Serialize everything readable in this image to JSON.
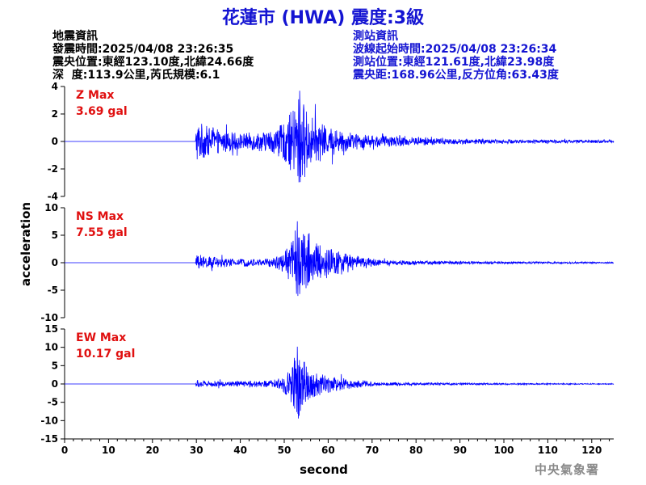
{
  "title": "花蓮市 (HWA) 震度:3級",
  "colors": {
    "title": "#1414d2",
    "event_info": "#000000",
    "station_info": "#1414d2",
    "max_label": "#e01010",
    "trace": "#0000ff",
    "axis": "#000000",
    "agency": "#8a8a8a"
  },
  "event_info": {
    "heading": "地震資訊",
    "origin_time": "發震時間:2025/04/08 23:26:35",
    "epicenter": "震央位置:東經123.10度,北緯24.66度",
    "depth_magnitude": "深  度:113.9公里,芮氏規模:6.1"
  },
  "station_info": {
    "heading": "測站資訊",
    "wave_onset": "波線起始時間:2025/04/08 23:26:34",
    "station_location": "測站位置:東經121.61度,北緯23.98度",
    "distance_azimuth": "震央距:168.96公里,反方位角:63.43度"
  },
  "agency": "中央氣象署",
  "chart_data": {
    "type": "line",
    "xlabel": "second",
    "ylabel": "acceleration",
    "xlim": [
      0,
      125
    ],
    "xticks": [
      0,
      10,
      20,
      30,
      40,
      50,
      60,
      70,
      80,
      90,
      100,
      110,
      120
    ],
    "panels": [
      {
        "component": "Z",
        "max_label": "Z Max",
        "max_value": "3.69 gal",
        "ylim": [
          -4,
          4
        ],
        "yticks": [
          -4,
          -2,
          0,
          2,
          4
        ],
        "onset_s": 30,
        "envelope": [
          [
            0,
            0
          ],
          [
            29.8,
            0
          ],
          [
            30,
            1.6
          ],
          [
            31,
            1.4
          ],
          [
            33,
            1.0
          ],
          [
            36,
            0.8
          ],
          [
            40,
            0.6
          ],
          [
            44,
            0.7
          ],
          [
            48,
            0.9
          ],
          [
            50,
            1.4
          ],
          [
            52,
            2.4
          ],
          [
            53.5,
            3.69
          ],
          [
            55,
            2.4
          ],
          [
            57,
            1.6
          ],
          [
            59,
            1.2
          ],
          [
            62,
            0.9
          ],
          [
            66,
            0.6
          ],
          [
            70,
            0.45
          ],
          [
            80,
            0.3
          ],
          [
            90,
            0.2
          ],
          [
            100,
            0.15
          ],
          [
            115,
            0.12
          ],
          [
            125,
            0.1
          ]
        ]
      },
      {
        "component": "NS",
        "max_label": "NS Max",
        "max_value": "7.55 gal",
        "ylim": [
          -10,
          10
        ],
        "yticks": [
          -10,
          -5,
          0,
          5,
          10
        ],
        "onset_s": 30,
        "envelope": [
          [
            0,
            0
          ],
          [
            29.8,
            0
          ],
          [
            30,
            1.4
          ],
          [
            32,
            1.2
          ],
          [
            35,
            0.9
          ],
          [
            40,
            0.7
          ],
          [
            45,
            0.7
          ],
          [
            48,
            1.0
          ],
          [
            50,
            2.0
          ],
          [
            52,
            5.0
          ],
          [
            53,
            7.55
          ],
          [
            55,
            5.0
          ],
          [
            57,
            3.8
          ],
          [
            59,
            3.0
          ],
          [
            62,
            2.2
          ],
          [
            66,
            1.3
          ],
          [
            69,
            1.0
          ],
          [
            72,
            0.5
          ],
          [
            80,
            0.35
          ],
          [
            90,
            0.25
          ],
          [
            100,
            0.2
          ],
          [
            115,
            0.15
          ],
          [
            125,
            0.12
          ]
        ]
      },
      {
        "component": "EW",
        "max_label": "EW Max",
        "max_value": "10.17 gal",
        "ylim": [
          -15,
          15
        ],
        "yticks": [
          -15,
          -10,
          -5,
          0,
          5,
          10,
          15
        ],
        "onset_s": 30,
        "envelope": [
          [
            0,
            0
          ],
          [
            29.8,
            0
          ],
          [
            30,
            1.2
          ],
          [
            33,
            0.9
          ],
          [
            37,
            0.7
          ],
          [
            42,
            0.8
          ],
          [
            46,
            0.9
          ],
          [
            49,
            1.5
          ],
          [
            51,
            3.5
          ],
          [
            53,
            10.17
          ],
          [
            55,
            5.0
          ],
          [
            57,
            3.5
          ],
          [
            60,
            2.4
          ],
          [
            64,
            1.5
          ],
          [
            68,
            0.9
          ],
          [
            72,
            0.5
          ],
          [
            80,
            0.35
          ],
          [
            90,
            0.25
          ],
          [
            100,
            0.2
          ],
          [
            115,
            0.15
          ],
          [
            125,
            0.12
          ]
        ]
      }
    ]
  }
}
